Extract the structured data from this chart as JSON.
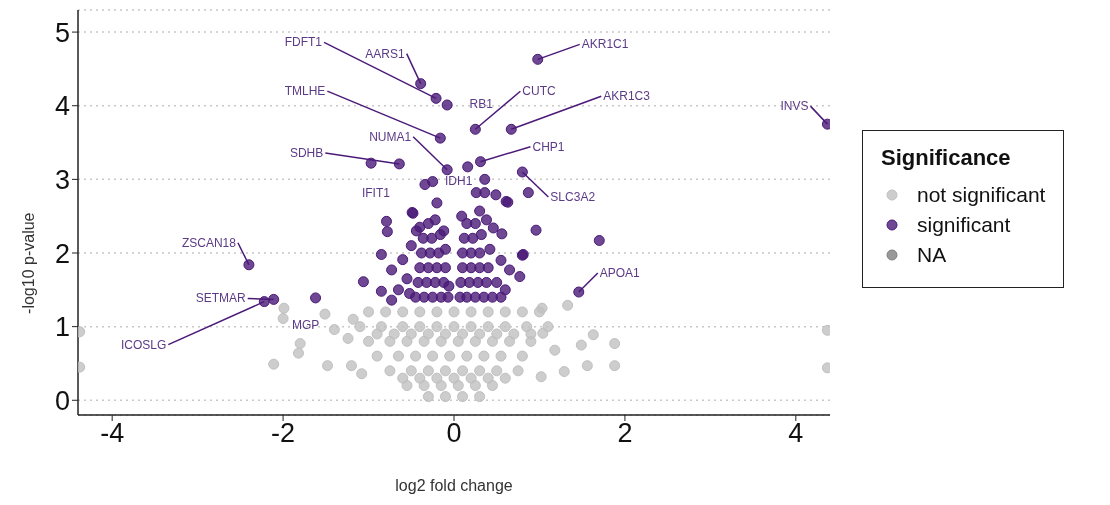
{
  "chart_data": {
    "type": "scatter",
    "xlabel": "log2 fold change",
    "ylabel": "-log10 p-value",
    "legend_title": "Significance",
    "legend": "right",
    "grid": "y",
    "marker": "circle",
    "xlim": [
      -4.4,
      4.4
    ],
    "xticks": [
      -4,
      -2,
      0,
      2,
      4
    ],
    "ylim": [
      -0.2,
      5.3
    ],
    "yticks": [
      0,
      1,
      2,
      3,
      4,
      5
    ],
    "series": [
      {
        "name": "not significant",
        "color": "#c0c0c0",
        "x": [
          -4.38,
          -4.38,
          4.37,
          4.37,
          -1.99,
          -2.0,
          -1.51,
          -2.11,
          -1.8,
          -1.82,
          -1.48,
          -1.2,
          -1.08,
          -1.4,
          -1.18,
          -1.24,
          1.33,
          1.63,
          1.49,
          1.88,
          1.56,
          1.88,
          1.29,
          1.03,
          1.18,
          1.02,
          1.04,
          -1.0,
          -0.8,
          -0.6,
          -0.4,
          -0.2,
          0,
          0.2,
          0.4,
          0.6,
          0.8,
          1.0,
          -1.1,
          -0.85,
          -0.6,
          -0.4,
          -0.2,
          0,
          0.2,
          0.4,
          0.6,
          0.85,
          1.1,
          -1.0,
          -0.75,
          -0.55,
          -0.35,
          -0.15,
          0.05,
          0.25,
          0.45,
          0.65,
          0.9,
          -0.9,
          -0.65,
          -0.45,
          -0.25,
          -0.05,
          0.15,
          0.35,
          0.55,
          0.8,
          -0.75,
          -0.5,
          -0.3,
          -0.1,
          0.1,
          0.3,
          0.5,
          0.75,
          -0.55,
          -0.35,
          -0.15,
          0.05,
          0.25,
          0.45,
          -0.3,
          -0.1,
          0.1,
          0.3,
          -0.9,
          -0.7,
          -0.5,
          -0.3,
          -0.1,
          0.1,
          0.3,
          0.5,
          0.7,
          0.9,
          -0.6,
          -0.4,
          -0.2,
          0,
          0.2,
          0.4,
          0.6
        ],
        "values": [
          0.93,
          0.45,
          0.95,
          0.44,
          1.25,
          1.11,
          1.17,
          0.49,
          0.77,
          0.64,
          0.47,
          0.47,
          0.36,
          0.96,
          1.1,
          0.84,
          1.29,
          0.89,
          0.75,
          0.77,
          0.47,
          0.47,
          0.39,
          1.25,
          0.68,
          0.32,
          0.91,
          1.2,
          1.2,
          1.2,
          1.2,
          1.2,
          1.2,
          1.2,
          1.2,
          1.2,
          1.2,
          1.2,
          1.0,
          1.0,
          1.0,
          1.0,
          1.0,
          1.0,
          1.0,
          1.0,
          1.0,
          1.0,
          1.0,
          0.8,
          0.8,
          0.8,
          0.8,
          0.8,
          0.8,
          0.8,
          0.8,
          0.8,
          0.8,
          0.6,
          0.6,
          0.6,
          0.6,
          0.6,
          0.6,
          0.6,
          0.6,
          0.6,
          0.4,
          0.4,
          0.4,
          0.4,
          0.4,
          0.4,
          0.4,
          0.4,
          0.2,
          0.2,
          0.2,
          0.2,
          0.2,
          0.2,
          0.05,
          0.05,
          0.05,
          0.05,
          0.9,
          0.9,
          0.9,
          0.9,
          0.9,
          0.9,
          0.9,
          0.9,
          0.9,
          0.9,
          0.3,
          0.3,
          0.3,
          0.3,
          0.3,
          0.3,
          0.3
        ]
      },
      {
        "name": "significant",
        "color": "#4b1a78",
        "x": [
          0.98,
          -0.21,
          -0.39,
          0.25,
          -0.08,
          0.67,
          -0.16,
          -0.08,
          0.31,
          -0.64,
          -0.97,
          0.16,
          -0.34,
          -0.25,
          0.8,
          4.37,
          -2.4,
          1.46,
          -2.11,
          -1.62,
          -2.22,
          0.36,
          0.26,
          0.36,
          0.49,
          0.61,
          0.87,
          -0.2,
          -0.49,
          -1.06,
          -0.85,
          -0.79,
          -0.78,
          -0.73,
          -0.85,
          -0.73,
          -0.65,
          -0.6,
          -0.48,
          0.09,
          0.3,
          0.96,
          1.7,
          0.81,
          0.77,
          0.65,
          0.56,
          0.46,
          0.63,
          0.8,
          -0.45,
          -0.35,
          -0.25,
          -0.15,
          -0.07,
          -0.42,
          -0.32,
          -0.22,
          -0.12,
          -0.06,
          -0.4,
          -0.3,
          -0.2,
          -0.1,
          -0.38,
          -0.28,
          -0.18,
          -0.1,
          -0.36,
          -0.26,
          -0.16,
          -0.4,
          -0.3,
          -0.22,
          -0.52,
          -0.55,
          -0.5,
          -0.44,
          -0.12,
          0.07,
          0.15,
          0.25,
          0.35,
          0.45,
          0.55,
          0.08,
          0.18,
          0.28,
          0.38,
          0.5,
          0.1,
          0.2,
          0.3,
          0.4,
          0.1,
          0.2,
          0.3,
          0.42,
          0.12,
          0.22,
          0.32,
          0.15,
          0.25,
          0.38,
          0.6,
          0.55
        ],
        "values": [
          4.63,
          4.1,
          4.3,
          3.68,
          4.01,
          3.68,
          3.56,
          3.13,
          3.24,
          3.21,
          3.22,
          3.17,
          2.93,
          2.97,
          3.1,
          3.75,
          1.84,
          1.47,
          1.37,
          1.39,
          1.34,
          3.0,
          2.82,
          2.82,
          2.79,
          2.7,
          2.82,
          2.68,
          2.55,
          1.61,
          1.98,
          2.43,
          2.29,
          1.77,
          1.48,
          1.36,
          1.5,
          1.91,
          2.54,
          2.5,
          2.57,
          2.31,
          2.17,
          1.98,
          1.68,
          1.77,
          2.26,
          2.34,
          2.69,
          1.97,
          1.4,
          1.4,
          1.4,
          1.4,
          1.4,
          1.6,
          1.6,
          1.6,
          1.6,
          1.55,
          1.8,
          1.8,
          1.8,
          1.8,
          2.0,
          2.0,
          2.0,
          2.05,
          2.2,
          2.2,
          2.25,
          2.35,
          2.4,
          2.45,
          1.45,
          1.65,
          2.1,
          2.3,
          2.3,
          1.4,
          1.4,
          1.4,
          1.4,
          1.4,
          1.4,
          1.6,
          1.6,
          1.6,
          1.6,
          1.6,
          1.8,
          1.8,
          1.8,
          1.8,
          2.0,
          2.0,
          2.0,
          2.05,
          2.2,
          2.2,
          2.25,
          2.4,
          2.4,
          2.45,
          1.5,
          1.9
        ]
      },
      {
        "name": "NA",
        "color": "#7f7f7f"
      }
    ],
    "annotations": [
      {
        "text": "AKR1C1",
        "x": 0.98,
        "y": 4.63
      },
      {
        "text": "FDFT1",
        "x": -0.21,
        "y": 4.1
      },
      {
        "text": "AARS1",
        "x": -0.39,
        "y": 4.3
      },
      {
        "text": "CUTC",
        "x": 0.25,
        "y": 3.68
      },
      {
        "text": "RB1",
        "x": -0.08,
        "y": 4.01
      },
      {
        "text": "AKR1C3",
        "x": 0.67,
        "y": 3.68
      },
      {
        "text": "TMLHE",
        "x": -0.16,
        "y": 3.56
      },
      {
        "text": "NUMA1",
        "x": -0.08,
        "y": 3.13
      },
      {
        "text": "CHP1",
        "x": 0.31,
        "y": 3.24
      },
      {
        "text": "SDHB",
        "x": -0.64,
        "y": 3.21
      },
      {
        "text": "IDH1",
        "x": 0.16,
        "y": 3.17
      },
      {
        "text": "IFIT1",
        "x": -0.34,
        "y": 2.93
      },
      {
        "text": "SLC3A2",
        "x": 0.8,
        "y": 3.1
      },
      {
        "text": "INVS",
        "x": 4.37,
        "y": 3.75
      },
      {
        "text": "ZSCAN18",
        "x": -2.4,
        "y": 1.84
      },
      {
        "text": "APOA1",
        "x": 1.46,
        "y": 1.47
      },
      {
        "text": "SETMAR",
        "x": -2.11,
        "y": 1.37
      },
      {
        "text": "MGP",
        "x": -1.62,
        "y": 1.39
      },
      {
        "text": "ICOSLG",
        "x": -2.22,
        "y": 1.34
      }
    ]
  }
}
